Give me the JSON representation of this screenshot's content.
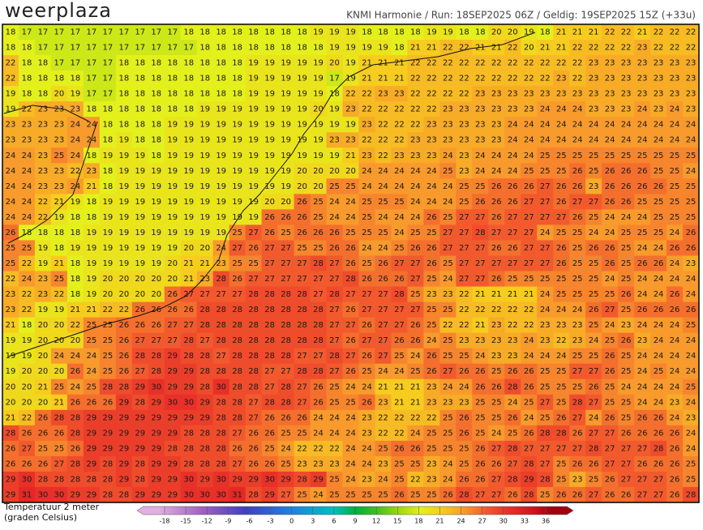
{
  "header": {
    "logo": "weerplaza",
    "info": "KNMI Harmonie  /  Run: 18SEP2025 06Z  /  Geldig: 19SEP2025 15Z (+33u)"
  },
  "map": {
    "type": "grid",
    "values": [
      [
        18,
        17,
        17,
        17,
        17,
        17,
        17,
        17,
        17,
        17,
        17,
        18,
        18,
        18,
        18,
        18,
        18,
        18,
        18,
        19,
        19,
        19,
        18,
        18,
        18,
        18,
        19,
        19,
        18,
        18,
        20,
        20,
        19,
        18,
        21,
        21,
        21,
        22,
        22,
        21,
        22,
        22,
        22
      ],
      [
        18,
        18,
        17,
        17,
        17,
        17,
        17,
        17,
        17,
        17,
        17,
        17,
        18,
        18,
        18,
        18,
        18,
        18,
        18,
        18,
        19,
        19,
        19,
        19,
        18,
        21,
        21,
        22,
        22,
        21,
        21,
        22,
        20,
        21,
        21,
        22,
        22,
        22,
        22,
        23,
        22,
        22,
        22
      ],
      [
        22,
        18,
        18,
        17,
        17,
        17,
        17,
        18,
        18,
        18,
        18,
        18,
        18,
        18,
        18,
        19,
        19,
        19,
        19,
        19,
        20,
        19,
        21,
        21,
        21,
        22,
        22,
        22,
        22,
        22,
        22,
        22,
        22,
        22,
        22,
        22,
        23,
        23,
        23,
        23,
        23,
        23,
        23
      ],
      [
        22,
        18,
        18,
        18,
        18,
        17,
        17,
        18,
        18,
        18,
        18,
        18,
        18,
        18,
        18,
        19,
        19,
        19,
        19,
        19,
        17,
        19,
        21,
        21,
        21,
        22,
        22,
        22,
        22,
        22,
        22,
        22,
        22,
        22,
        23,
        22,
        23,
        23,
        23,
        23,
        23,
        23,
        23
      ],
      [
        19,
        18,
        18,
        20,
        19,
        17,
        17,
        18,
        18,
        18,
        18,
        18,
        18,
        18,
        18,
        19,
        19,
        19,
        19,
        19,
        18,
        22,
        22,
        23,
        23,
        22,
        22,
        22,
        22,
        23,
        23,
        23,
        23,
        23,
        23,
        23,
        23,
        23,
        23,
        23,
        23,
        23,
        23
      ],
      [
        19,
        22,
        23,
        23,
        23,
        18,
        18,
        18,
        18,
        18,
        18,
        18,
        19,
        19,
        19,
        19,
        19,
        19,
        19,
        20,
        19,
        23,
        22,
        22,
        22,
        22,
        22,
        23,
        23,
        23,
        23,
        23,
        23,
        24,
        24,
        24,
        23,
        23,
        23,
        24,
        23,
        24,
        23
      ],
      [
        23,
        23,
        23,
        23,
        24,
        24,
        18,
        18,
        18,
        18,
        19,
        19,
        19,
        19,
        19,
        19,
        19,
        19,
        19,
        19,
        19,
        19,
        23,
        22,
        22,
        22,
        23,
        23,
        23,
        23,
        23,
        24,
        24,
        24,
        24,
        24,
        24,
        24,
        24,
        24,
        24,
        24,
        24
      ],
      [
        23,
        23,
        23,
        23,
        24,
        24,
        18,
        19,
        18,
        18,
        19,
        19,
        19,
        19,
        19,
        19,
        19,
        19,
        19,
        19,
        23,
        23,
        22,
        22,
        22,
        23,
        23,
        23,
        23,
        23,
        23,
        24,
        24,
        24,
        24,
        24,
        24,
        24,
        24,
        24,
        24,
        24,
        24
      ],
      [
        24,
        24,
        23,
        25,
        24,
        18,
        19,
        19,
        19,
        18,
        19,
        19,
        19,
        19,
        19,
        19,
        19,
        19,
        19,
        19,
        19,
        21,
        23,
        22,
        23,
        23,
        23,
        24,
        23,
        24,
        24,
        24,
        24,
        25,
        25,
        25,
        25,
        25,
        25,
        25,
        25,
        25,
        25
      ],
      [
        24,
        24,
        23,
        23,
        22,
        23,
        18,
        19,
        19,
        19,
        19,
        19,
        19,
        19,
        19,
        19,
        19,
        19,
        20,
        20,
        20,
        20,
        24,
        24,
        24,
        24,
        24,
        25,
        23,
        24,
        24,
        24,
        25,
        25,
        25,
        26,
        25,
        26,
        26,
        26,
        25,
        25,
        24
      ],
      [
        24,
        24,
        23,
        23,
        24,
        21,
        18,
        19,
        19,
        19,
        19,
        19,
        19,
        19,
        19,
        19,
        19,
        19,
        20,
        20,
        25,
        25,
        24,
        24,
        24,
        24,
        24,
        24,
        25,
        25,
        26,
        26,
        26,
        27,
        26,
        26,
        23,
        26,
        26,
        26,
        26,
        25,
        25
      ],
      [
        24,
        24,
        22,
        21,
        19,
        18,
        19,
        19,
        19,
        19,
        19,
        19,
        19,
        19,
        19,
        19,
        20,
        20,
        26,
        25,
        24,
        24,
        25,
        25,
        25,
        24,
        24,
        24,
        25,
        26,
        26,
        26,
        27,
        27,
        26,
        27,
        27,
        26,
        26,
        25,
        25,
        25,
        25
      ],
      [
        24,
        24,
        22,
        19,
        18,
        18,
        19,
        19,
        19,
        19,
        19,
        19,
        19,
        19,
        19,
        19,
        26,
        26,
        26,
        25,
        24,
        24,
        25,
        24,
        24,
        24,
        26,
        25,
        27,
        27,
        26,
        27,
        27,
        27,
        27,
        26,
        25,
        24,
        24,
        24,
        25,
        25,
        25
      ],
      [
        26,
        18,
        18,
        18,
        18,
        19,
        19,
        19,
        19,
        19,
        19,
        19,
        19,
        19,
        25,
        27,
        26,
        25,
        26,
        26,
        26,
        25,
        25,
        25,
        24,
        25,
        25,
        27,
        27,
        28,
        27,
        27,
        27,
        24,
        25,
        25,
        24,
        24,
        25,
        25,
        25,
        24,
        26
      ],
      [
        25,
        25,
        19,
        18,
        19,
        19,
        19,
        19,
        19,
        19,
        19,
        20,
        20,
        24,
        27,
        26,
        27,
        27,
        25,
        25,
        26,
        26,
        24,
        24,
        25,
        26,
        26,
        27,
        27,
        27,
        26,
        26,
        27,
        27,
        26,
        25,
        26,
        26,
        25,
        24,
        24,
        26,
        26
      ],
      [
        25,
        22,
        19,
        21,
        18,
        19,
        19,
        19,
        19,
        19,
        20,
        21,
        21,
        23,
        25,
        25,
        27,
        27,
        27,
        28,
        27,
        26,
        25,
        26,
        27,
        27,
        26,
        25,
        27,
        27,
        27,
        27,
        27,
        27,
        26,
        25,
        25,
        26,
        25,
        26,
        26,
        24,
        23
      ],
      [
        22,
        24,
        23,
        25,
        18,
        19,
        20,
        20,
        20,
        20,
        20,
        21,
        23,
        28,
        26,
        27,
        27,
        27,
        27,
        27,
        27,
        28,
        26,
        26,
        26,
        27,
        25,
        24,
        27,
        27,
        26,
        25,
        25,
        25,
        25,
        25,
        25,
        24,
        25,
        24,
        24,
        24,
        24
      ],
      [
        23,
        22,
        23,
        22,
        18,
        19,
        20,
        20,
        20,
        20,
        26,
        27,
        27,
        27,
        27,
        28,
        28,
        28,
        28,
        27,
        28,
        27,
        27,
        27,
        28,
        25,
        23,
        23,
        22,
        21,
        21,
        21,
        21,
        24,
        25,
        25,
        25,
        25,
        26,
        24,
        24,
        26,
        24
      ],
      [
        23,
        22,
        19,
        19,
        21,
        21,
        22,
        22,
        26,
        26,
        26,
        26,
        28,
        28,
        28,
        28,
        28,
        28,
        28,
        28,
        27,
        26,
        27,
        27,
        27,
        27,
        25,
        25,
        22,
        22,
        22,
        22,
        22,
        24,
        24,
        24,
        26,
        27,
        25,
        26,
        26,
        26,
        26
      ],
      [
        21,
        18,
        20,
        20,
        22,
        25,
        25,
        26,
        26,
        26,
        27,
        27,
        28,
        28,
        28,
        28,
        28,
        28,
        28,
        28,
        27,
        27,
        26,
        27,
        27,
        26,
        25,
        22,
        22,
        21,
        23,
        22,
        22,
        23,
        23,
        23,
        25,
        24,
        23,
        24,
        24,
        24,
        25
      ],
      [
        19,
        19,
        20,
        20,
        20,
        25,
        25,
        26,
        27,
        27,
        27,
        28,
        27,
        28,
        28,
        28,
        28,
        28,
        28,
        28,
        27,
        26,
        27,
        27,
        26,
        26,
        24,
        25,
        23,
        23,
        23,
        23,
        24,
        23,
        22,
        23,
        24,
        25,
        26,
        23,
        24,
        24,
        24
      ],
      [
        19,
        19,
        20,
        24,
        24,
        24,
        25,
        26,
        28,
        28,
        29,
        28,
        28,
        27,
        28,
        28,
        28,
        28,
        27,
        27,
        28,
        27,
        26,
        27,
        25,
        24,
        26,
        25,
        25,
        24,
        23,
        23,
        24,
        24,
        24,
        25,
        25,
        26,
        25,
        24,
        24,
        24,
        24
      ],
      [
        19,
        20,
        20,
        20,
        26,
        24,
        25,
        26,
        27,
        28,
        29,
        29,
        28,
        28,
        28,
        28,
        27,
        27,
        28,
        28,
        27,
        26,
        25,
        24,
        24,
        25,
        26,
        27,
        26,
        26,
        25,
        26,
        26,
        25,
        25,
        27,
        27,
        26,
        25,
        24,
        25,
        24,
        24
      ],
      [
        20,
        20,
        21,
        25,
        24,
        25,
        28,
        28,
        29,
        30,
        29,
        29,
        28,
        30,
        28,
        28,
        27,
        28,
        27,
        26,
        25,
        24,
        24,
        21,
        21,
        21,
        23,
        24,
        24,
        26,
        26,
        28,
        26,
        25,
        25,
        25,
        26,
        25,
        24,
        24,
        24,
        24,
        25
      ],
      [
        20,
        20,
        20,
        21,
        26,
        26,
        26,
        29,
        28,
        29,
        30,
        30,
        29,
        28,
        28,
        27,
        28,
        28,
        27,
        26,
        25,
        25,
        26,
        23,
        21,
        21,
        23,
        23,
        23,
        25,
        25,
        24,
        25,
        27,
        25,
        28,
        27,
        25,
        25,
        24,
        24,
        23,
        24
      ],
      [
        21,
        22,
        26,
        28,
        28,
        29,
        29,
        29,
        29,
        29,
        29,
        29,
        29,
        28,
        28,
        27,
        26,
        26,
        26,
        24,
        24,
        24,
        23,
        22,
        22,
        22,
        22,
        25,
        26,
        25,
        25,
        26,
        24,
        25,
        26,
        27,
        24,
        26,
        25,
        26,
        26,
        24,
        23
      ],
      [
        28,
        26,
        26,
        26,
        28,
        29,
        29,
        29,
        29,
        29,
        29,
        28,
        28,
        28,
        27,
        26,
        26,
        25,
        25,
        24,
        24,
        24,
        23,
        22,
        22,
        24,
        25,
        25,
        26,
        25,
        24,
        25,
        26,
        28,
        28,
        26,
        27,
        27,
        26,
        26,
        26,
        26,
        24
      ],
      [
        26,
        27,
        25,
        25,
        26,
        29,
        29,
        29,
        29,
        29,
        28,
        28,
        28,
        28,
        26,
        26,
        25,
        24,
        22,
        22,
        22,
        24,
        24,
        25,
        26,
        26,
        25,
        25,
        25,
        26,
        27,
        28,
        27,
        27,
        27,
        27,
        28,
        27,
        27,
        27,
        28,
        26,
        24
      ],
      [
        26,
        26,
        26,
        27,
        28,
        29,
        28,
        29,
        28,
        29,
        29,
        28,
        28,
        28,
        27,
        26,
        26,
        25,
        23,
        23,
        23,
        24,
        24,
        23,
        25,
        25,
        23,
        24,
        25,
        26,
        26,
        27,
        28,
        27,
        25,
        26,
        26,
        27,
        27,
        26,
        26,
        26,
        25
      ],
      [
        29,
        30,
        28,
        28,
        28,
        28,
        28,
        29,
        28,
        29,
        29,
        30,
        29,
        30,
        29,
        29,
        30,
        29,
        28,
        29,
        25,
        24,
        23,
        24,
        25,
        22,
        23,
        24,
        26,
        26,
        27,
        28,
        29,
        28,
        25,
        23,
        25,
        26,
        27,
        27,
        27,
        26,
        25
      ],
      [
        29,
        31,
        30,
        30,
        29,
        29,
        28,
        28,
        29,
        29,
        29,
        30,
        30,
        30,
        31,
        28,
        29,
        27,
        25,
        24,
        25,
        25,
        25,
        25,
        26,
        25,
        25,
        26,
        28,
        27,
        27,
        26,
        28,
        25,
        26,
        26,
        27,
        26,
        26,
        27,
        27,
        26,
        28
      ]
    ]
  },
  "legend": {
    "title": "Temperatuur 2 meter",
    "unit": "(graden Celsius)",
    "ticks": [
      -18,
      -15,
      -12,
      -9,
      -6,
      -3,
      0,
      3,
      6,
      9,
      12,
      15,
      18,
      21,
      24,
      27,
      30,
      33,
      36
    ]
  }
}
